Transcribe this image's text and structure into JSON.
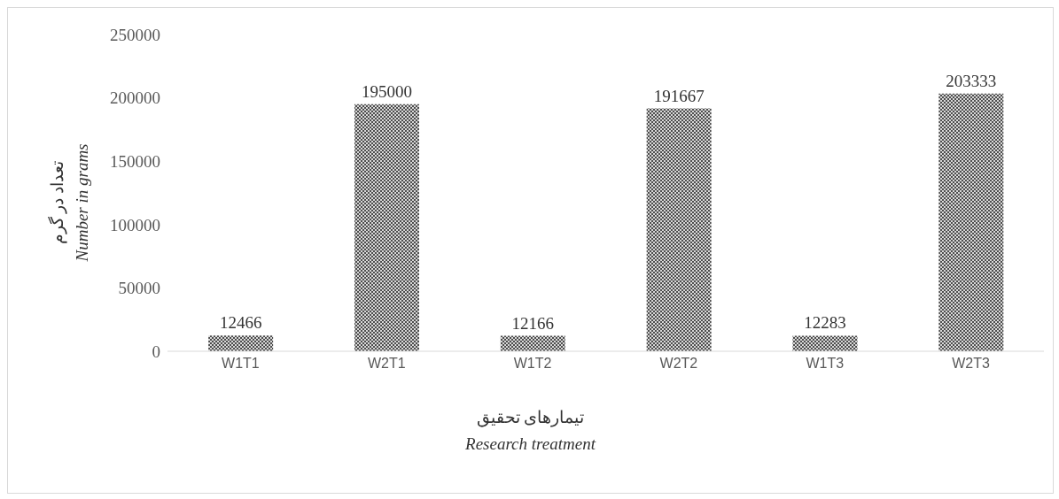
{
  "chart_data": {
    "type": "bar",
    "categories": [
      "W1T1",
      "W2T1",
      "W1T2",
      "W2T2",
      "W1T3",
      "W2T3"
    ],
    "values": [
      12466,
      195000,
      12166,
      191667,
      12283,
      203333
    ],
    "color": "#4d4d4d",
    "ylim": [
      0,
      250000
    ],
    "yticks": [
      0,
      50000,
      100000,
      150000,
      200000,
      250000
    ],
    "ylabel": "تعداد در گرم\nNumber in grams",
    "xlabel": "تیمارهای تحقیق\nResearch treatment",
    "data_labels": true,
    "grid": false,
    "legend": false
  }
}
